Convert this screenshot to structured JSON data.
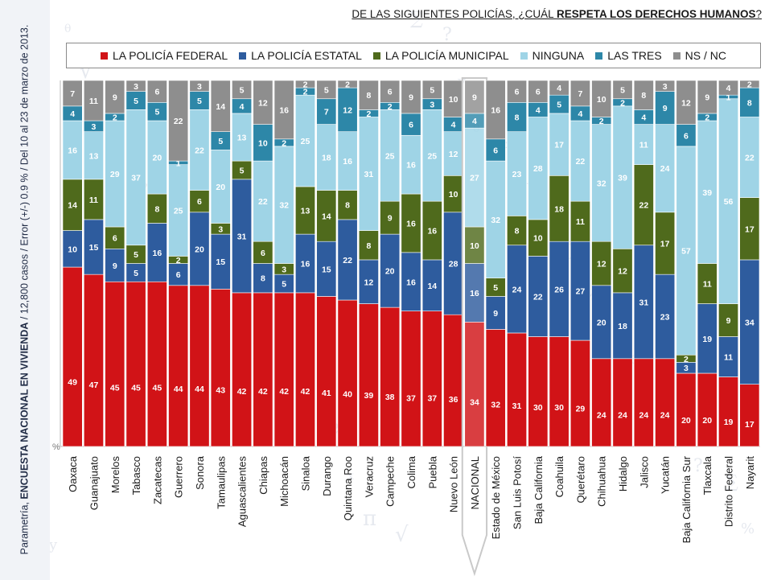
{
  "credit": {
    "prefix": "Parametría, ",
    "bold": "ENCUESTA NACIONAL EN VIVIENDA",
    "suffix": " / 12,800 casos / Error (+/-) 0.9 % / Del 10 al 23 de marzo de 2013."
  },
  "question": {
    "prefix": "DE LAS SIGUIENTES POLICÍAS, ¿CUÁL ",
    "bold": "RESPETA LOS DERECHOS HUMANOS",
    "suffix": "?"
  },
  "colors": {
    "federal": "#d11317",
    "estatal": "#2e5c9e",
    "municipal": "#4f6a1c",
    "ninguna": "#9fd4e6",
    "las_tres": "#2d87a8",
    "ns_nc": "#8e8e8e",
    "nacional_highlight": "#c9c9c9"
  },
  "chart_data": {
    "type": "bar",
    "stacked": true,
    "unit": "%",
    "ylim": [
      0,
      100
    ],
    "legend_position": "top",
    "highlight_category": "NACIONAL",
    "categories": [
      "Oaxaca",
      "Guanajuato",
      "Morelos",
      "Tabasco",
      "Zacatecas",
      "Guerrero",
      "Sonora",
      "Tamaulipas",
      "Aguascalientes",
      "Chiapas",
      "Michoacán",
      "Sinaloa",
      "Durango",
      "Quintana Roo",
      "Veracruz",
      "Campeche",
      "Colima",
      "Puebla",
      "Nuevo León",
      "NACIONAL",
      "Estado de México",
      "San Luis Potosí",
      "Baja California",
      "Coahuila",
      "Querétaro",
      "Chihuahua",
      "Hidalgo",
      "Jalisco",
      "Yucatán",
      "Baja California Sur",
      "Tlaxcala",
      "Distrito Federal",
      "Nayarit"
    ],
    "series": [
      {
        "name": "LA POLICÍA FEDERAL",
        "key": "federal",
        "values": [
          49,
          47,
          45,
          45,
          45,
          44,
          44,
          43,
          42,
          42,
          42,
          42,
          41,
          40,
          39,
          38,
          37,
          37,
          36,
          34,
          32,
          31,
          30,
          30,
          29,
          24,
          24,
          24,
          24,
          20,
          20,
          19,
          17
        ]
      },
      {
        "name": "LA POLICÍA ESTATAL",
        "key": "estatal",
        "values": [
          10,
          15,
          9,
          5,
          16,
          6,
          20,
          15,
          31,
          8,
          5,
          16,
          15,
          22,
          12,
          20,
          16,
          14,
          28,
          16,
          9,
          24,
          22,
          26,
          27,
          20,
          18,
          31,
          23,
          3,
          19,
          11,
          34
        ]
      },
      {
        "name": "LA POLICÍA MUNICIPAL",
        "key": "municipal",
        "values": [
          14,
          11,
          6,
          5,
          8,
          2,
          6,
          3,
          5,
          6,
          3,
          13,
          14,
          8,
          8,
          9,
          16,
          16,
          10,
          10,
          5,
          8,
          10,
          18,
          11,
          12,
          12,
          22,
          17,
          2,
          11,
          9,
          17
        ]
      },
      {
        "name": "NINGUNA",
        "key": "ninguna",
        "values": [
          16,
          13,
          29,
          37,
          20,
          25,
          22,
          20,
          13,
          22,
          32,
          25,
          18,
          16,
          31,
          25,
          16,
          25,
          12,
          27,
          32,
          23,
          28,
          17,
          22,
          32,
          39,
          11,
          24,
          57,
          39,
          56,
          22
        ]
      },
      {
        "name": "LAS TRES",
        "key": "las_tres",
        "values": [
          4,
          3,
          2,
          5,
          5,
          1,
          5,
          5,
          4,
          10,
          2,
          2,
          7,
          12,
          2,
          2,
          6,
          3,
          4,
          4,
          6,
          8,
          4,
          5,
          4,
          2,
          2,
          4,
          9,
          6,
          2,
          1,
          8
        ]
      },
      {
        "name": "NS / NC",
        "key": "ns_nc",
        "values": [
          7,
          11,
          9,
          3,
          6,
          22,
          3,
          14,
          5,
          12,
          16,
          2,
          5,
          2,
          8,
          6,
          9,
          5,
          10,
          9,
          16,
          6,
          6,
          4,
          7,
          10,
          5,
          8,
          3,
          12,
          9,
          4,
          2
        ]
      }
    ],
    "baseline_label": "%"
  }
}
